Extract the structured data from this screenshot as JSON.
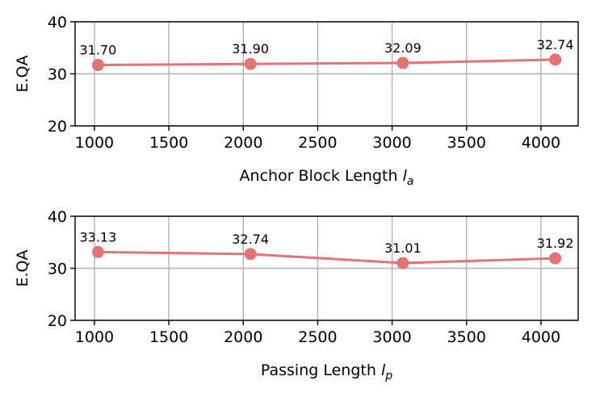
{
  "chart_data": [
    {
      "type": "line",
      "title": "",
      "xlabel": "Anchor Block Length",
      "xlabel_var": "l",
      "xlabel_sub": "a",
      "ylabel": "E.QA",
      "x": [
        1024,
        2048,
        3072,
        4096
      ],
      "values": [
        31.7,
        31.9,
        32.09,
        32.74
      ],
      "data_labels": [
        "31.70",
        "31.90",
        "32.09",
        "32.74"
      ],
      "xlim": [
        870,
        4250
      ],
      "ylim": [
        20,
        40
      ],
      "xticks": [
        1000,
        1500,
        2000,
        2500,
        3000,
        3500,
        4000
      ],
      "yticks": [
        20,
        30,
        40
      ],
      "grid": true,
      "color": "#e57373"
    },
    {
      "type": "line",
      "title": "",
      "xlabel": "Passing Length",
      "xlabel_var": "l",
      "xlabel_sub": "p",
      "ylabel": "E.QA",
      "x": [
        1024,
        2048,
        3072,
        4096
      ],
      "values": [
        33.13,
        32.74,
        31.01,
        31.92
      ],
      "data_labels": [
        "33.13",
        "32.74",
        "31.01",
        "31.92"
      ],
      "xlim": [
        870,
        4250
      ],
      "ylim": [
        20,
        40
      ],
      "xticks": [
        1000,
        1500,
        2000,
        2500,
        3000,
        3500,
        4000
      ],
      "yticks": [
        20,
        30,
        40
      ],
      "grid": true,
      "color": "#e57373"
    }
  ]
}
